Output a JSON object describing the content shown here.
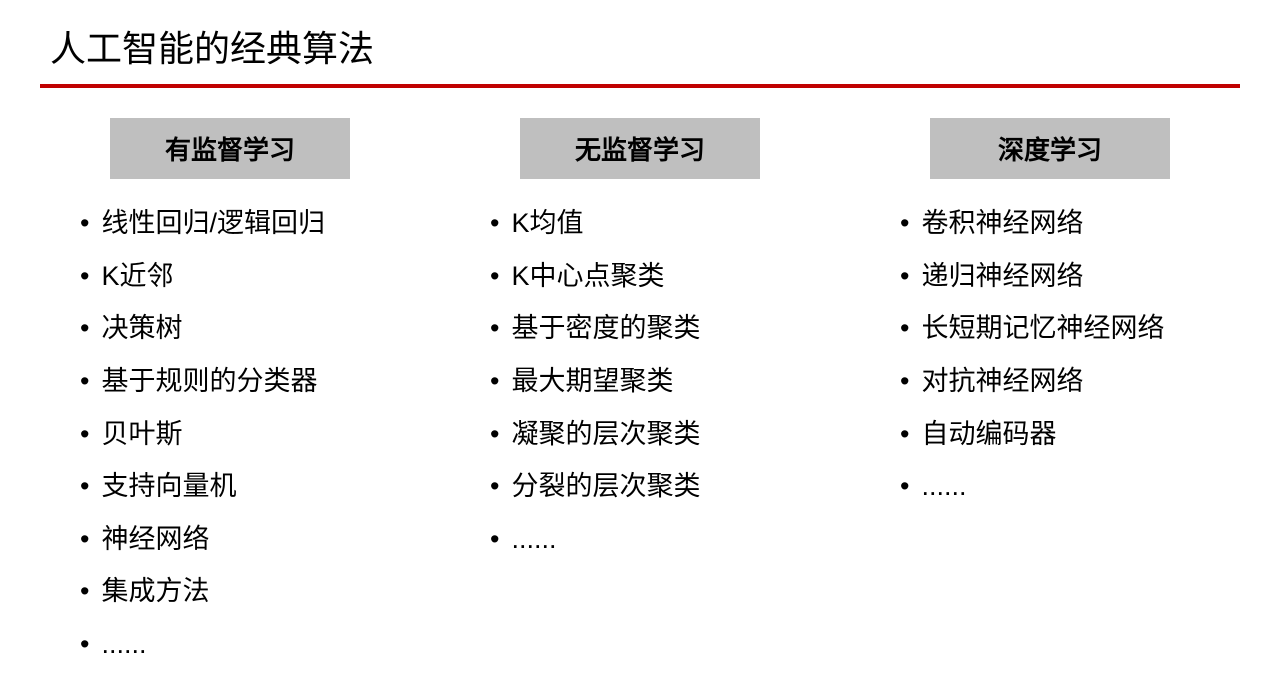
{
  "title": "人工智能的经典算法",
  "divider_color": "#c00000",
  "header_bg_color": "#bfbfbf",
  "text_color": "#000000",
  "background_color": "#ffffff",
  "title_fontsize": 36,
  "header_fontsize": 26,
  "item_fontsize": 27,
  "columns": [
    {
      "header": "有监督学习",
      "items": [
        "线性回归/逻辑回归",
        "K近邻",
        "决策树",
        "基于规则的分类器",
        "贝叶斯",
        "支持向量机",
        "神经网络",
        "集成方法",
        "......"
      ]
    },
    {
      "header": "无监督学习",
      "items": [
        "K均值",
        "K中心点聚类",
        "基于密度的聚类",
        "最大期望聚类",
        "凝聚的层次聚类",
        "分裂的层次聚类",
        "......"
      ]
    },
    {
      "header": "深度学习",
      "items": [
        "卷积神经网络",
        "递归神经网络",
        "长短期记忆神经网络",
        "对抗神经网络",
        "自动编码器",
        "......"
      ]
    }
  ]
}
